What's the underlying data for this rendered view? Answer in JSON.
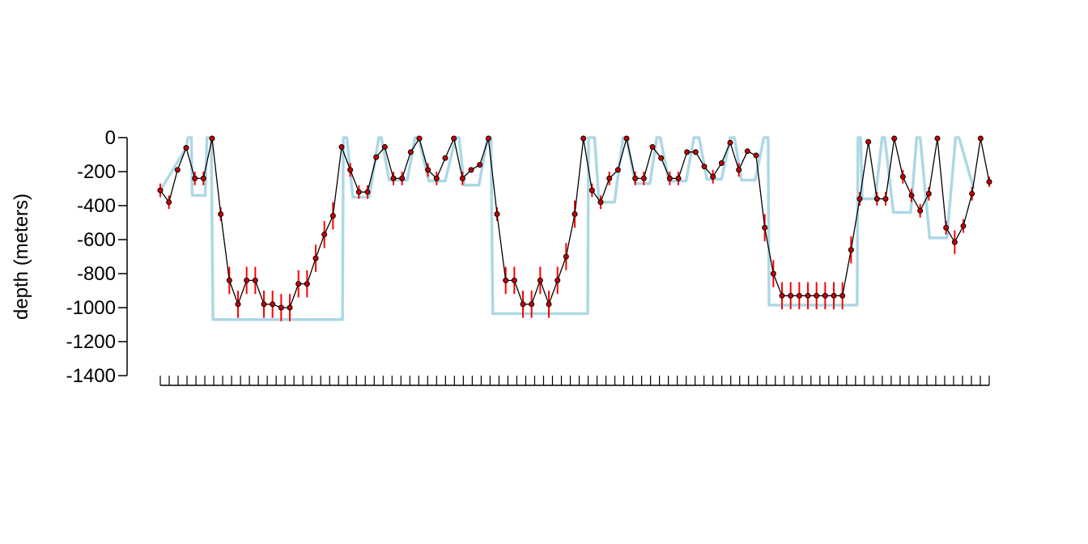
{
  "chart_data": {
    "type": "line",
    "ylabel": "depth (meters)",
    "ylim": [
      -1400,
      0
    ],
    "yticks": [
      0,
      -200,
      -400,
      -600,
      -800,
      -1000,
      -1200,
      -1400
    ],
    "y_tick_labels": [
      "0",
      "-200",
      "-400",
      "-600",
      "-800",
      "-1000",
      "-1200",
      "-1400"
    ],
    "x_tick_count": 94,
    "x_tick_labels_shown": false,
    "grid": false,
    "legend": "none",
    "colors": {
      "estimate_line": "#000000",
      "estimate_points": "#cc0000",
      "error_bars": "#ff0000",
      "true_track": "#add8e6"
    },
    "series": [
      {
        "role": "estimate",
        "values": [
          -310,
          -380,
          -190,
          -60,
          -240,
          -240,
          -5,
          -450,
          -840,
          -980,
          -840,
          -840,
          -980,
          -980,
          -1000,
          -1000,
          -860,
          -860,
          -710,
          -570,
          -460,
          -55,
          -190,
          -320,
          -320,
          -115,
          -55,
          -240,
          -240,
          -85,
          -5,
          -190,
          -240,
          -120,
          -5,
          -240,
          -190,
          -160,
          -5,
          -450,
          -840,
          -840,
          -980,
          -980,
          -840,
          -980,
          -840,
          -700,
          -450,
          -5,
          -310,
          -380,
          -240,
          -190,
          -5,
          -240,
          -240,
          -55,
          -120,
          -240,
          -240,
          -85,
          -85,
          -170,
          -230,
          -150,
          -30,
          -190,
          -80,
          -105,
          -530,
          -800,
          -930,
          -930,
          -930,
          -930,
          -930,
          -930,
          -930,
          -930,
          -660,
          -360,
          -25,
          -360,
          -360,
          -5,
          -230,
          -340,
          -430,
          -330,
          -5,
          -530,
          -615,
          -520,
          -330,
          -5,
          -260
        ]
      },
      {
        "role": "uncertainty",
        "values": [
          40,
          40,
          0,
          0,
          40,
          40,
          0,
          40,
          80,
          80,
          80,
          80,
          80,
          80,
          80,
          80,
          80,
          80,
          80,
          80,
          80,
          0,
          40,
          40,
          40,
          0,
          0,
          40,
          40,
          0,
          0,
          40,
          40,
          0,
          0,
          40,
          0,
          0,
          0,
          40,
          80,
          80,
          80,
          80,
          80,
          80,
          80,
          80,
          80,
          0,
          40,
          40,
          40,
          0,
          0,
          40,
          40,
          0,
          0,
          40,
          40,
          0,
          0,
          0,
          40,
          0,
          0,
          40,
          0,
          0,
          80,
          80,
          80,
          80,
          80,
          80,
          80,
          80,
          80,
          80,
          80,
          40,
          0,
          40,
          40,
          0,
          40,
          40,
          40,
          40,
          0,
          40,
          70,
          40,
          40,
          0,
          30
        ]
      },
      {
        "role": "true_track",
        "points": [
          [
            0,
            -310
          ],
          [
            3,
            -60
          ],
          [
            3.2,
            0
          ],
          [
            3.6,
            0
          ],
          [
            3.7,
            -340
          ],
          [
            5.2,
            -340
          ],
          [
            5.4,
            0
          ],
          [
            5.9,
            0
          ],
          [
            6.1,
            -1070
          ],
          [
            21.1,
            -1070
          ],
          [
            21.2,
            0
          ],
          [
            21.6,
            0
          ],
          [
            22.3,
            -350
          ],
          [
            24.2,
            -350
          ],
          [
            25.3,
            0
          ],
          [
            25.6,
            0
          ],
          [
            26.5,
            -250
          ],
          [
            28.6,
            -250
          ],
          [
            29.5,
            0
          ],
          [
            29.9,
            0
          ],
          [
            31.1,
            -255
          ],
          [
            33,
            -255
          ],
          [
            34.2,
            0
          ],
          [
            34.6,
            0
          ],
          [
            35.2,
            -280
          ],
          [
            36.9,
            -280
          ],
          [
            37.9,
            0
          ],
          [
            38.3,
            0
          ],
          [
            38.5,
            -1035
          ],
          [
            49.5,
            -1035
          ],
          [
            49.6,
            0
          ],
          [
            50.3,
            0
          ],
          [
            50.8,
            -380
          ],
          [
            52.6,
            -380
          ],
          [
            53.6,
            0
          ],
          [
            54,
            0
          ],
          [
            55,
            -270
          ],
          [
            56.7,
            -270
          ],
          [
            57.5,
            0
          ],
          [
            57.9,
            0
          ],
          [
            58.9,
            -255
          ],
          [
            60.9,
            -255
          ],
          [
            61.8,
            0
          ],
          [
            62.4,
            0
          ],
          [
            63.3,
            -245
          ],
          [
            65,
            -245
          ],
          [
            66,
            0
          ],
          [
            66.5,
            0
          ],
          [
            67.3,
            -250
          ],
          [
            68.9,
            -250
          ],
          [
            69.9,
            0
          ],
          [
            70.4,
            0
          ],
          [
            70.5,
            -985
          ],
          [
            80.7,
            -985
          ],
          [
            80.8,
            0
          ],
          [
            81.1,
            0
          ],
          [
            81.3,
            -360
          ],
          [
            82.8,
            -360
          ],
          [
            83.6,
            0
          ],
          [
            83.9,
            0
          ],
          [
            84.9,
            -440
          ],
          [
            86.9,
            -440
          ],
          [
            87.6,
            0
          ],
          [
            88,
            0
          ],
          [
            89.1,
            -590
          ],
          [
            91.1,
            -590
          ],
          [
            92.1,
            0
          ],
          [
            92.5,
            0
          ],
          [
            94.2,
            -300
          ]
        ]
      }
    ]
  }
}
